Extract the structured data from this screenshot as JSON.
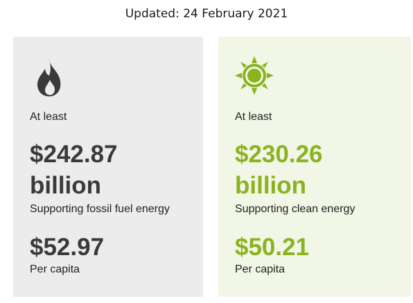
{
  "header": {
    "updated": "Updated: 24 February 2021"
  },
  "cards": {
    "fossil": {
      "icon": "flame-icon",
      "color": "#3a3a3a",
      "background": "#ececec",
      "at_least": "At least",
      "amount": "$242.87",
      "unit": "billion",
      "supporting": "Supporting fossil fuel energy",
      "per_capita_value": "$52.97",
      "per_capita_label": "Per capita"
    },
    "clean": {
      "icon": "sun-icon",
      "color": "#8ab31f",
      "background": "#f1f6e6",
      "at_least": "At least",
      "amount": "$230.26",
      "unit": "billion",
      "supporting": "Supporting clean energy",
      "per_capita_value": "$50.21",
      "per_capita_label": "Per capita"
    }
  }
}
